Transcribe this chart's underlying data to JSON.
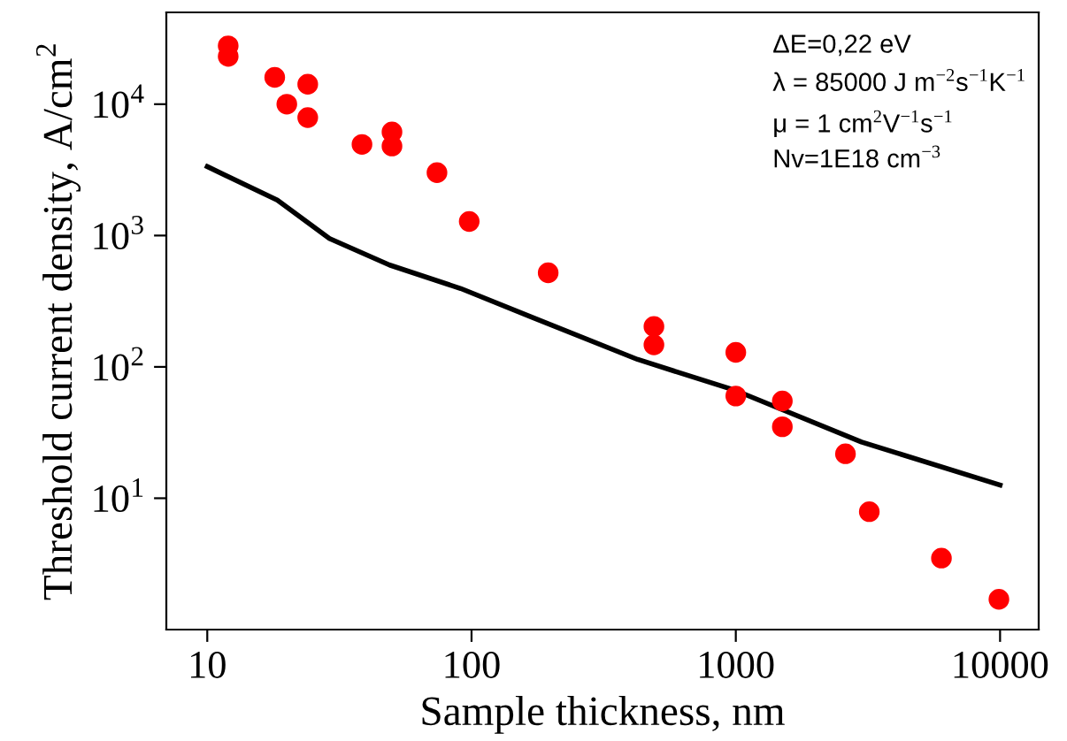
{
  "chart_data": {
    "type": "scatter",
    "xlabel": "Sample thickness, nm",
    "ylabel": "Threshold current density, A/cm$^{2}$",
    "log": "xy",
    "grid": false,
    "legend": false,
    "xlim": [
      7,
      14000
    ],
    "ylim": [
      1,
      50000
    ],
    "xticks": [
      10,
      100,
      1000,
      10000
    ],
    "yticks": [
      {
        "value": 10,
        "label": "10$^{1}$"
      },
      {
        "value": 100,
        "label": "10$^{2}$"
      },
      {
        "value": 1000,
        "label": "10$^{3}$"
      },
      {
        "value": 10000,
        "label": "10$^{4}$"
      }
    ],
    "series": [
      {
        "color": "#ff0000",
        "marker": "circle",
        "x": [
          12,
          12,
          18,
          20,
          24,
          24,
          38.5,
          50,
          50,
          74,
          98,
          195,
          490,
          490,
          1000,
          1000,
          1500,
          1500,
          2600,
          3200,
          6000,
          9900
        ],
        "values": [
          27800,
          23100,
          16000,
          10000,
          14200,
          7900,
          4940,
          6150,
          4800,
          3010,
          1280,
          520,
          203,
          147,
          129,
          60,
          55,
          35,
          21.8,
          7.9,
          3.5,
          1.7
        ]
      },
      {
        "type": "line",
        "color": "#000000",
        "marker": "none",
        "line_style": "solid",
        "x": [
          10,
          18.4,
          29,
          49,
          91,
          168,
          425,
          1000,
          2990,
          10000
        ],
        "values": [
          3350,
          1860,
          950,
          596,
          395,
          240,
          114,
          66,
          26.8,
          12.6
        ]
      }
    ],
    "annotations": [
      "ΔE=0,22 eV",
      "λ = 85000 J m$^{−2}$s$^{−1}$K$^{−1}$",
      "μ = 1 cm$^{2}$V$^{−1}$s$^{−1}$",
      "Nv=1E18 cm$^{−3}$"
    ]
  }
}
